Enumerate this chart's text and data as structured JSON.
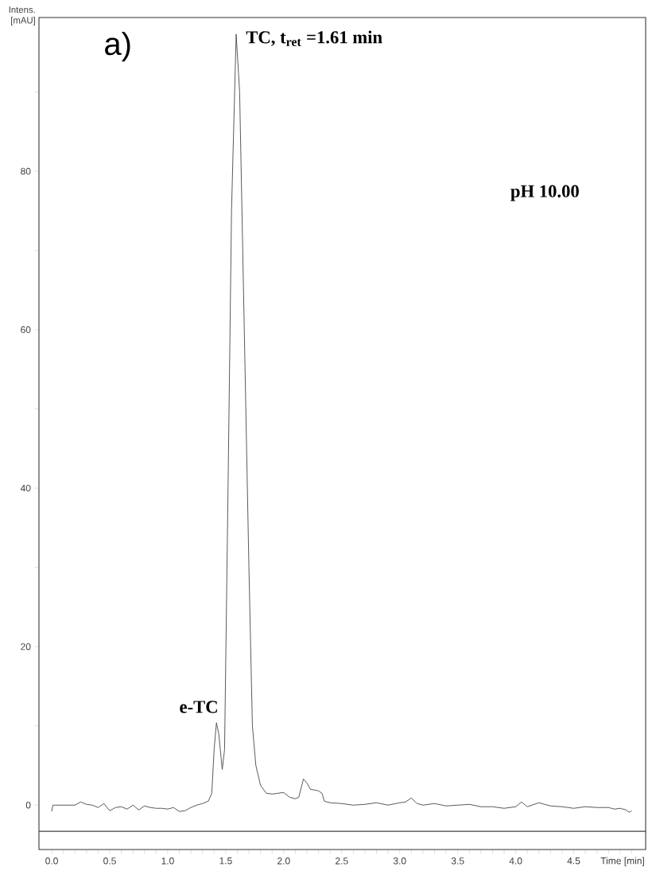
{
  "chart_data": {
    "type": "line",
    "ylabel": "Intens. [mAU]",
    "xlabel": "Time [min]",
    "annotations": [
      "a)",
      {
        "text": "TC, t$_{ret}$ =1.61 min",
        "x": 1.59,
        "y": 97.3
      },
      {
        "text": "e-TC",
        "x": 1.42,
        "y": 10.4
      },
      "pH 10.00"
    ],
    "x": [
      0.0,
      0.01,
      0.2,
      0.25,
      0.3,
      0.35,
      0.4,
      0.45,
      0.5,
      0.55,
      0.6,
      0.65,
      0.7,
      0.75,
      0.8,
      0.85,
      0.9,
      0.95,
      1.0,
      1.05,
      1.1,
      1.15,
      1.2,
      1.25,
      1.3,
      1.35,
      1.38,
      1.4,
      1.42,
      1.44,
      1.47,
      1.49,
      1.52,
      1.55,
      1.59,
      1.62,
      1.66,
      1.7,
      1.73,
      1.76,
      1.8,
      1.85,
      1.9,
      1.95,
      2.0,
      2.05,
      2.1,
      2.13,
      2.17,
      2.2,
      2.23,
      2.27,
      2.3,
      2.33,
      2.35,
      2.4,
      2.5,
      2.6,
      2.7,
      2.8,
      2.9,
      3.0,
      3.05,
      3.1,
      3.15,
      3.2,
      3.3,
      3.4,
      3.5,
      3.6,
      3.7,
      3.8,
      3.9,
      4.0,
      4.05,
      4.1,
      4.2,
      4.3,
      4.4,
      4.5,
      4.6,
      4.7,
      4.8,
      4.85,
      4.9,
      4.95,
      4.98,
      5.0
    ],
    "series": [
      {
        "color": "#4d4d4d",
        "values": [
          -0.8,
          0,
          0,
          0.4,
          0.1,
          0,
          -0.3,
          0.2,
          -0.7,
          -0.3,
          -0.2,
          -0.5,
          0,
          -0.6,
          -0.1,
          -0.3,
          -0.4,
          -0.4,
          -0.5,
          -0.3,
          -0.8,
          -0.7,
          -0.3,
          0,
          0.2,
          0.5,
          1.5,
          7,
          10.4,
          9,
          4.5,
          7,
          40,
          75,
          97.3,
          90,
          60,
          30,
          10,
          5,
          2.5,
          1.5,
          1.4,
          1.5,
          1.6,
          1.0,
          0.8,
          1.0,
          3.3,
          2.8,
          2.0,
          1.9,
          1.8,
          1.5,
          0.5,
          0.3,
          0.2,
          0,
          0.1,
          0.3,
          0,
          0.3,
          0.4,
          0.9,
          0.2,
          0,
          0.2,
          -0.1,
          0,
          0.1,
          -0.2,
          -0.2,
          -0.4,
          -0.2,
          0.4,
          -0.2,
          0.3,
          -0.1,
          -0.2,
          -0.4,
          -0.2,
          -0.3,
          -0.3,
          -0.5,
          -0.4,
          -0.6,
          -0.9,
          -0.7
        ]
      }
    ],
    "marker": "none",
    "ref_lines": [
      {
        "axis": "y",
        "value": -3.3,
        "color": "#3c3c50"
      }
    ],
    "xlim": [
      -0.11,
      5.12
    ],
    "ylim": [
      -5.6,
      99.4
    ],
    "xticks": [
      {
        "value": 0,
        "label": "0.0"
      },
      {
        "value": 0.1,
        "label": null
      },
      {
        "value": 0.2,
        "label": null
      },
      {
        "value": 0.3,
        "label": null
      },
      {
        "value": 0.4,
        "label": null
      },
      {
        "value": 0.5,
        "label": "0.5"
      },
      {
        "value": 0.6,
        "label": null
      },
      {
        "value": 0.7,
        "label": null
      },
      {
        "value": 0.8,
        "label": null
      },
      {
        "value": 0.9,
        "label": null
      },
      {
        "value": 1.0,
        "label": "1.0"
      },
      {
        "value": 1.1,
        "label": null
      },
      {
        "value": 1.2,
        "label": null
      },
      {
        "value": 1.3,
        "label": null
      },
      {
        "value": 1.4,
        "label": null
      },
      {
        "value": 1.5,
        "label": "1.5"
      },
      {
        "value": 1.6,
        "label": null
      },
      {
        "value": 1.7,
        "label": null
      },
      {
        "value": 1.8,
        "label": null
      },
      {
        "value": 1.9,
        "label": null
      },
      {
        "value": 2.0,
        "label": "2.0"
      },
      {
        "value": 2.1,
        "label": null
      },
      {
        "value": 2.2,
        "label": null
      },
      {
        "value": 2.3,
        "label": null
      },
      {
        "value": 2.4,
        "label": null
      },
      {
        "value": 2.5,
        "label": "2.5"
      },
      {
        "value": 2.6,
        "label": null
      },
      {
        "value": 2.7,
        "label": null
      },
      {
        "value": 2.8,
        "label": null
      },
      {
        "value": 2.9,
        "label": null
      },
      {
        "value": 3.0,
        "label": "3.0"
      },
      {
        "value": 3.1,
        "label": null
      },
      {
        "value": 3.2,
        "label": null
      },
      {
        "value": 3.3,
        "label": null
      },
      {
        "value": 3.4,
        "label": null
      },
      {
        "value": 3.5,
        "label": "3.5"
      },
      {
        "value": 3.6,
        "label": null
      },
      {
        "value": 3.7,
        "label": null
      },
      {
        "value": 3.8,
        "label": null
      },
      {
        "value": 3.9,
        "label": null
      },
      {
        "value": 4.0,
        "label": "4.0"
      },
      {
        "value": 4.1,
        "label": null
      },
      {
        "value": 4.2,
        "label": null
      },
      {
        "value": 4.3,
        "label": null
      },
      {
        "value": 4.4,
        "label": null
      },
      {
        "value": 4.5,
        "label": "4.5"
      },
      {
        "value": 4.6,
        "label": null
      },
      {
        "value": 4.7,
        "label": null
      },
      {
        "value": 4.8,
        "label": null
      },
      {
        "value": 4.9,
        "label": null
      },
      {
        "value": 5.0,
        "label": null
      }
    ],
    "yticks": [
      0,
      {
        "value": 10,
        "label": null
      },
      20,
      {
        "value": 30,
        "label": null
      },
      40,
      {
        "value": 50,
        "label": null
      },
      60,
      {
        "value": 70,
        "label": null
      },
      80,
      {
        "value": 90,
        "label": null
      }
    ]
  }
}
